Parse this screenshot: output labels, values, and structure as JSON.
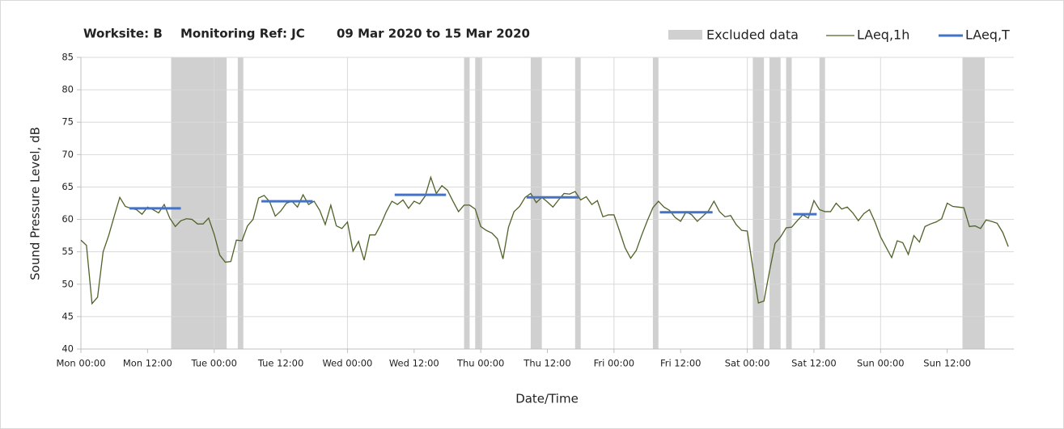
{
  "chart_data": {
    "type": "line",
    "title_parts": [
      "Worksite: B",
      "Monitoring Ref: JC",
      "09 Mar 2020 to 15 Mar 2020"
    ],
    "x_label": "Date/Time",
    "y_label": "Sound Pressure Level, dB",
    "xlim": [
      0,
      168
    ],
    "ylim": [
      40,
      85
    ],
    "yticks": [
      40,
      45,
      50,
      55,
      60,
      65,
      70,
      75,
      80,
      85
    ],
    "xticks": [
      {
        "value": 0,
        "label": "Mon 00:00"
      },
      {
        "value": 12,
        "label": "Mon 12:00"
      },
      {
        "value": 24,
        "label": "Tue 00:00"
      },
      {
        "value": 36,
        "label": "Tue 12:00"
      },
      {
        "value": 48,
        "label": "Wed 00:00"
      },
      {
        "value": 60,
        "label": "Wed 12:00"
      },
      {
        "value": 72,
        "label": "Thu 00:00"
      },
      {
        "value": 84,
        "label": "Thu 12:00"
      },
      {
        "value": 96,
        "label": "Fri 00:00"
      },
      {
        "value": 108,
        "label": "Fri 12:00"
      },
      {
        "value": 120,
        "label": "Sat 00:00"
      },
      {
        "value": 132,
        "label": "Sat 12:00"
      },
      {
        "value": 144,
        "label": "Sun 00:00"
      },
      {
        "value": 156,
        "label": "Sun 12:00"
      }
    ],
    "grid": true,
    "excluded": {
      "name": "Excluded data",
      "color": "#d0d0d0",
      "ranges": [
        [
          16.25,
          26.25
        ],
        [
          28.25,
          29.25
        ],
        [
          69,
          70
        ],
        [
          71,
          72.25
        ],
        [
          81,
          83
        ],
        [
          89,
          90
        ],
        [
          103,
          104
        ],
        [
          121,
          123
        ],
        [
          124,
          126
        ],
        [
          127,
          128
        ],
        [
          133,
          134
        ],
        [
          158.75,
          162.75
        ]
      ]
    },
    "series": [
      {
        "name": "LAeq,1h",
        "color": "#4f6228",
        "x": [
          0,
          1,
          2,
          3,
          4,
          5,
          6,
          7,
          8,
          9,
          10,
          11,
          12,
          13,
          14,
          15,
          16,
          17,
          18,
          19,
          20,
          21,
          22,
          23,
          24,
          25,
          26,
          27,
          28,
          29,
          30,
          31,
          32,
          33,
          34,
          35,
          36,
          37,
          38,
          39,
          40,
          41,
          42,
          43,
          44,
          45,
          46,
          47,
          48,
          49,
          50,
          51,
          52,
          53,
          54,
          55,
          56,
          57,
          58,
          59,
          60,
          61,
          62,
          63,
          64,
          65,
          66,
          67,
          68,
          69,
          70,
          71,
          72,
          73,
          74,
          75,
          76,
          77,
          78,
          79,
          80,
          81,
          82,
          83,
          84,
          85,
          86,
          87,
          88,
          89,
          90,
          91,
          92,
          93,
          94,
          95,
          96,
          97,
          98,
          99,
          100,
          101,
          102,
          103,
          104,
          105,
          106,
          107,
          108,
          109,
          110,
          111,
          112,
          113,
          114,
          115,
          116,
          117,
          118,
          119,
          120,
          121,
          122,
          123,
          124,
          125,
          126,
          127,
          128,
          129,
          130,
          131,
          132,
          133,
          134,
          135,
          136,
          137,
          138,
          139,
          140,
          141,
          142,
          143,
          144,
          145,
          146,
          147,
          148,
          149,
          150,
          151,
          152,
          153,
          154,
          155,
          156,
          157,
          158,
          159,
          160,
          161,
          162,
          163,
          164,
          165,
          166,
          167
        ],
        "values": [
          56.8,
          56,
          47,
          48,
          55,
          57.5,
          60.5,
          63.4,
          62,
          61.7,
          61.5,
          60.8,
          61.9,
          61.5,
          61,
          62.3,
          60.2,
          58.9,
          59.8,
          60.1,
          60,
          59.3,
          59.3,
          60.2,
          57.7,
          54.5,
          53.4,
          53.5,
          56.8,
          56.7,
          59,
          60,
          63.3,
          63.7,
          62.7,
          60.5,
          61.3,
          62.5,
          62.8,
          61.9,
          63.8,
          62.3,
          62.8,
          61.4,
          59.2,
          62.2,
          59,
          58.6,
          59.6,
          55.1,
          56.6,
          53.7,
          57.6,
          57.6,
          59.2,
          61.2,
          62.8,
          62.3,
          63,
          61.7,
          62.8,
          62.4,
          63.6,
          66.5,
          64,
          65.2,
          64.5,
          62.8,
          61.2,
          62.2,
          62.2,
          61.6,
          58.9,
          58.3,
          57.9,
          57,
          53.9,
          58.8,
          61.2,
          62,
          63.4,
          64,
          62.6,
          63.4,
          62.7,
          61.9,
          63,
          64,
          63.9,
          64.3,
          63,
          63.5,
          62.3,
          62.9,
          60.4,
          60.7,
          60.7,
          58.2,
          55.6,
          54,
          55.2,
          57.6,
          59.8,
          61.8,
          62.8,
          61.9,
          61.4,
          60.3,
          59.7,
          61.2,
          60.7,
          59.7,
          60.5,
          61.3,
          62.8,
          61.2,
          60.4,
          60.6,
          59.2,
          58.3,
          58.2,
          52.5,
          47.1,
          47.4,
          52,
          56.3,
          57.3,
          58.7,
          58.8,
          59.8,
          60.7,
          60.2,
          62.9,
          61.5,
          61.2,
          61.2,
          62.5,
          61.6,
          61.9,
          61,
          59.8,
          60.9,
          61.5,
          59.6,
          57.3,
          55.7,
          54.1,
          56.7,
          56.4,
          54.6,
          57.5,
          56.5,
          58.9,
          59.3,
          59.6,
          60.1,
          62.5,
          62,
          61.9,
          61.8,
          58.9,
          59,
          58.6,
          59.9,
          59.7,
          59.4,
          58,
          55.8
        ]
      },
      {
        "name": "LAeq,T",
        "color": "#4472c4",
        "segments": [
          {
            "x": [
              8.75,
              18
            ],
            "value": 61.7
          },
          {
            "x": [
              32.5,
              41.75
            ],
            "value": 62.8
          },
          {
            "x": [
              56.5,
              65.75
            ],
            "value": 63.8
          },
          {
            "x": [
              80.25,
              89.75
            ],
            "value": 63.4
          },
          {
            "x": [
              104.25,
              113.75
            ],
            "value": 61.1
          },
          {
            "x": [
              128.25,
              132.5
            ],
            "value": 60.8
          }
        ]
      }
    ]
  }
}
